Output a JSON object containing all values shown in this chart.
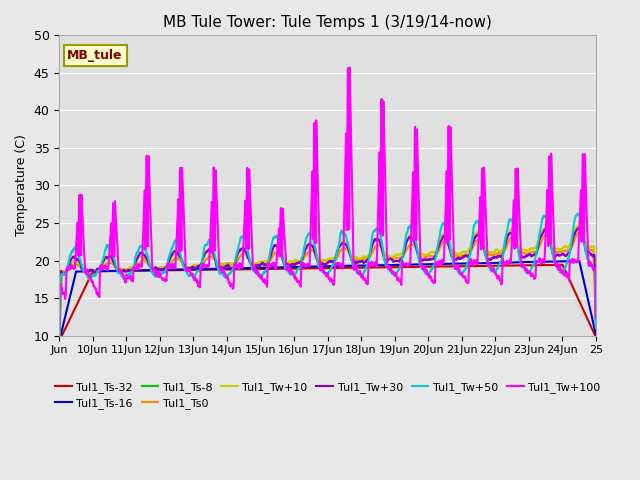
{
  "title": "MB Tule Tower: Tule Temps 1 (3/19/14-now)",
  "ylabel": "Temperature (C)",
  "ylim": [
    10,
    50
  ],
  "yticks": [
    10,
    15,
    20,
    25,
    30,
    35,
    40,
    45,
    50
  ],
  "background_color": "#e8e8e8",
  "plot_bg_color": "#e0e0e0",
  "legend_label": "MB_tule",
  "legend_bg": "#ffffcc",
  "legend_border": "#999900",
  "series_order": [
    "Tul1_Ts-32",
    "Tul1_Ts-16",
    "Tul1_Ts-8",
    "Tul1_Ts0",
    "Tul1_Tw+10",
    "Tul1_Tw+30",
    "Tul1_Tw+50",
    "Tul1_Tw+100"
  ],
  "series": {
    "Tul1_Ts-32": {
      "color": "#cc0000",
      "lw": 1.5
    },
    "Tul1_Ts-16": {
      "color": "#0000cc",
      "lw": 1.5
    },
    "Tul1_Ts-8": {
      "color": "#00cc00",
      "lw": 1.5
    },
    "Tul1_Ts0": {
      "color": "#ff8800",
      "lw": 1.5
    },
    "Tul1_Tw+10": {
      "color": "#cccc00",
      "lw": 1.5
    },
    "Tul1_Tw+30": {
      "color": "#8800cc",
      "lw": 1.5
    },
    "Tul1_Tw+50": {
      "color": "#00cccc",
      "lw": 1.5
    },
    "Tul1_Tw+100": {
      "color": "#ff00ff",
      "lw": 1.5
    }
  },
  "x_tick_labels": [
    "Jun",
    "10Jun",
    "11Jun",
    "12Jun",
    "13Jun",
    "14Jun",
    "15Jun",
    "16Jun",
    "17Jun",
    "18Jun",
    "19Jun",
    "20Jun",
    "21Jun",
    "22Jun",
    "23Jun",
    "24Jun",
    "25"
  ],
  "x_tick_positions": [
    0,
    1,
    2,
    3,
    4,
    5,
    6,
    7,
    8,
    9,
    10,
    11,
    12,
    13,
    14,
    15,
    16
  ]
}
